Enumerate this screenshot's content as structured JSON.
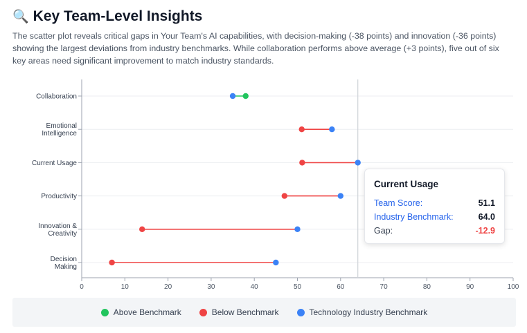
{
  "header": {
    "icon": "magnifier-icon",
    "icon_glyph": "🔍",
    "title": "Key Team-Level Insights",
    "description": "The scatter plot reveals critical gaps in Your Team's AI capabilities, with decision-making (-38 points) and innovation (-36 points) showing the largest deviations from industry benchmarks. While collaboration performs above average (+3 points), five out of six key areas need significant improvement to match industry standards."
  },
  "colors": {
    "above": "#22c55e",
    "below": "#ef4444",
    "benchmark": "#3b82f6"
  },
  "chart_data": {
    "type": "scatter",
    "categories": [
      [
        "Collaboration"
      ],
      [
        "Emotional",
        "Intelligence"
      ],
      [
        "Current Usage"
      ],
      [
        "Productivity"
      ],
      [
        "Innovation &",
        "Creativity"
      ],
      [
        "Decision",
        "Making"
      ]
    ],
    "team": [
      38,
      51,
      51.1,
      47,
      14,
      7
    ],
    "benchmark": [
      35,
      58,
      64,
      60,
      50,
      45
    ],
    "status": [
      "above",
      "below",
      "below",
      "below",
      "below",
      "below"
    ],
    "xlim": [
      0,
      100
    ],
    "xticks": [
      0,
      10,
      20,
      30,
      40,
      50,
      60,
      70,
      80,
      90,
      100
    ],
    "reference_line": 64,
    "grid": true
  },
  "tooltip": {
    "title": "Current Usage",
    "team_label": "Team Score:",
    "team_value": "51.1",
    "bench_label": "Industry Benchmark:",
    "bench_value": "64.0",
    "gap_label": "Gap:",
    "gap_value": "-12.9"
  },
  "legend": {
    "above": "Above Benchmark",
    "below": "Below Benchmark",
    "benchmark": "Technology Industry Benchmark"
  }
}
